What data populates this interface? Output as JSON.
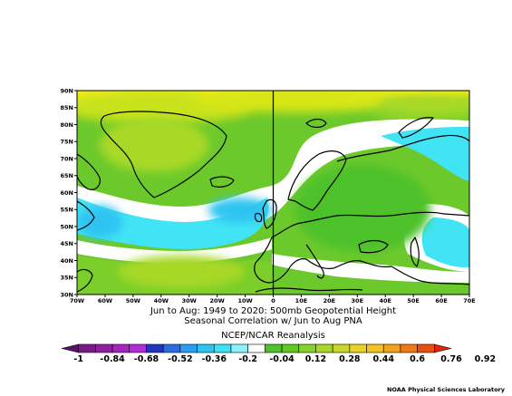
{
  "map": {
    "title_line1": "Jun to Aug: 1949 to 2020: 500mb Geopotential Height",
    "title_line2": "Seasonal Correlation w/ Jun to Aug PNA",
    "source_label": "NCEP/NCAR Reanalysis",
    "credit": "NOAA Physical Sciences Laboratory",
    "lat_ticks": [
      "90N",
      "85N",
      "80N",
      "75N",
      "70N",
      "65N",
      "60N",
      "55N",
      "50N",
      "45N",
      "40N",
      "35N",
      "30N"
    ],
    "lon_ticks": [
      "70W",
      "60W",
      "50W",
      "40W",
      "30W",
      "20W",
      "10W",
      "0",
      "10E",
      "20E",
      "30E",
      "40E",
      "50E",
      "60E",
      "70E"
    ],
    "lon_range": [
      -70,
      70
    ],
    "lat_range": [
      30,
      90
    ]
  },
  "colorbar": {
    "labels": [
      "-1",
      "-0.84",
      "-0.68",
      "-0.52",
      "-0.36",
      "-0.2",
      "-0.04",
      "0.12",
      "0.28",
      "0.44",
      "0.6",
      "0.76",
      "0.92"
    ],
    "colors": [
      "#5e0f6e",
      "#7a1a86",
      "#8f20a0",
      "#a426bd",
      "#b12ed4",
      "#2036c0",
      "#2b6ce0",
      "#2c9ef2",
      "#2ec4f2",
      "#3ae2f5",
      "#8ef0fa",
      "#ffffff",
      "#4ec12c",
      "#62c924",
      "#86d12a",
      "#aad62a",
      "#c8d82c",
      "#e8d22a",
      "#f4c222",
      "#f2a11c",
      "#ee7a16",
      "#e84e12",
      "#e02412"
    ]
  }
}
